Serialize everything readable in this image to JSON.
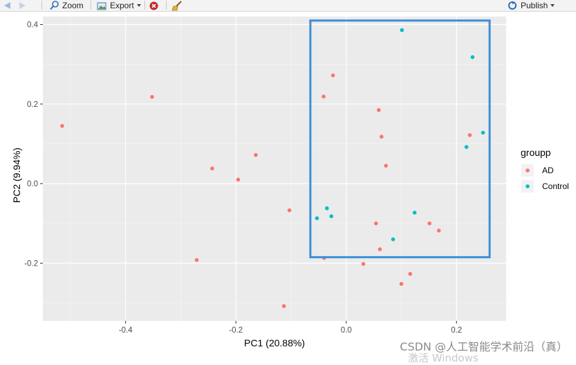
{
  "toolbar": {
    "zoom_label": "Zoom",
    "export_label": "Export",
    "publish_label": "Publish"
  },
  "colors": {
    "AD": "#F8766D",
    "Control": "#00BFC4",
    "panel_bg": "#EBEBEB",
    "highlight_box": "#3A8FD6"
  },
  "chart_data": {
    "type": "scatter",
    "title": "",
    "xlabel": "PC1 (20.88%)",
    "ylabel": "PC2 (9.94%)",
    "xlim": [
      -0.55,
      0.29
    ],
    "ylim": [
      -0.345,
      0.42
    ],
    "x_ticks": [
      -0.4,
      -0.2,
      0.0,
      0.2
    ],
    "x_tick_labels": [
      "-0.4",
      "-0.2",
      "0.0",
      "0.2"
    ],
    "y_ticks": [
      -0.2,
      0.0,
      0.2,
      0.4
    ],
    "y_tick_labels": [
      "-0.2",
      "0.0",
      "0.2",
      "0.4"
    ],
    "grid": true,
    "legend": {
      "title": "groupp",
      "position": "right",
      "entries": [
        "AD",
        "Control"
      ]
    },
    "highlight_box": {
      "x": [
        -0.065,
        0.26
      ],
      "y": [
        -0.185,
        0.41
      ]
    },
    "series": [
      {
        "name": "AD",
        "points": [
          [
            -0.515,
            0.145
          ],
          [
            -0.352,
            0.218
          ],
          [
            -0.243,
            0.038
          ],
          [
            -0.196,
            0.01
          ],
          [
            -0.164,
            0.072
          ],
          [
            -0.103,
            -0.067
          ],
          [
            -0.271,
            -0.192
          ],
          [
            -0.113,
            -0.308
          ],
          [
            -0.024,
            0.272
          ],
          [
            -0.041,
            0.219
          ],
          [
            0.059,
            0.185
          ],
          [
            0.064,
            0.118
          ],
          [
            0.072,
            0.045
          ],
          [
            0.054,
            -0.1
          ],
          [
            0.061,
            -0.165
          ],
          [
            0.151,
            -0.1
          ],
          [
            0.168,
            -0.118
          ],
          [
            0.224,
            0.122
          ],
          [
            -0.04,
            -0.187
          ],
          [
            0.031,
            -0.202
          ],
          [
            0.116,
            -0.227
          ],
          [
            0.1,
            -0.252
          ]
        ]
      },
      {
        "name": "Control",
        "points": [
          [
            0.101,
            0.386
          ],
          [
            0.229,
            0.318
          ],
          [
            0.248,
            0.128
          ],
          [
            0.218,
            0.092
          ],
          [
            -0.035,
            -0.062
          ],
          [
            -0.027,
            -0.082
          ],
          [
            -0.053,
            -0.087
          ],
          [
            0.124,
            -0.073
          ],
          [
            0.085,
            -0.14
          ]
        ]
      }
    ]
  },
  "watermark": {
    "text": "CSDN @人工智能学术前沿（真）",
    "os_text": "激活 Windows"
  }
}
